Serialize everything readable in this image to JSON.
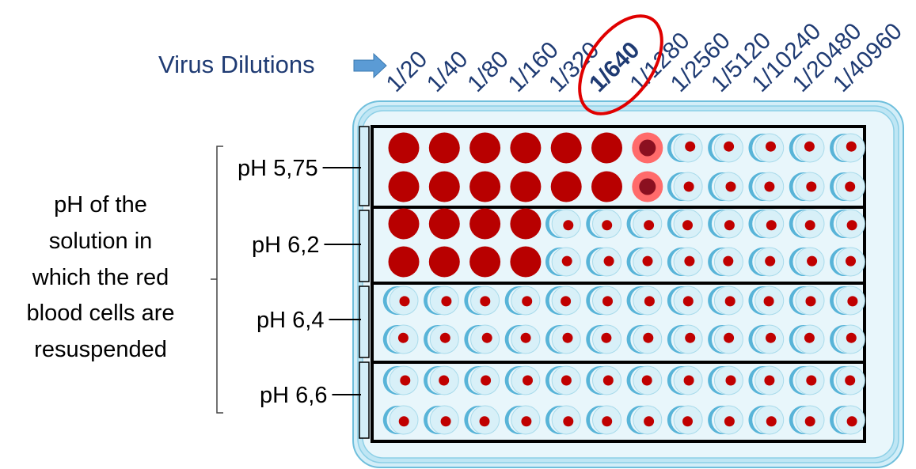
{
  "title": "Virus Dilutions",
  "dilutions": [
    "1/20",
    "1/40",
    "1/80",
    "1/160",
    "1/320",
    "1/640",
    "1/1280",
    "1/2560",
    "1/5120",
    "1/10240",
    "1/20480",
    "1/40960"
  ],
  "highlighted_dilution": "1/640",
  "side_label": [
    "pH of the",
    "solution in",
    "which the red",
    "blood cells are",
    "resuspended"
  ],
  "groups": [
    {
      "label": "pH 5,75",
      "rows": [
        [
          "full",
          "full",
          "full",
          "full",
          "full",
          "full",
          "partial",
          "button",
          "button",
          "button",
          "button",
          "button"
        ],
        [
          "full",
          "full",
          "full",
          "full",
          "full",
          "full",
          "partial",
          "button",
          "button",
          "button",
          "button",
          "button"
        ]
      ]
    },
    {
      "label": "pH 6,2",
      "rows": [
        [
          "full",
          "full",
          "full",
          "full",
          "button",
          "button",
          "button",
          "button",
          "button",
          "button",
          "button",
          "button"
        ],
        [
          "full",
          "full",
          "full",
          "full",
          "button",
          "button",
          "button",
          "button",
          "button",
          "button",
          "button",
          "button"
        ]
      ]
    },
    {
      "label": "pH 6,4",
      "rows": [
        [
          "button",
          "button",
          "button",
          "button",
          "button",
          "button",
          "button",
          "button",
          "button",
          "button",
          "button",
          "button"
        ],
        [
          "button",
          "button",
          "button",
          "button",
          "button",
          "button",
          "button",
          "button",
          "button",
          "button",
          "button",
          "button"
        ]
      ]
    },
    {
      "label": "pH 6,6",
      "rows": [
        [
          "button",
          "button",
          "button",
          "button",
          "button",
          "button",
          "button",
          "button",
          "button",
          "button",
          "button",
          "button"
        ],
        [
          "button",
          "button",
          "button",
          "button",
          "button",
          "button",
          "button",
          "button",
          "button",
          "button",
          "button",
          "button"
        ]
      ]
    }
  ],
  "colors": {
    "full": "#b80000",
    "partial_ring": "#ff6b6b",
    "partial_core": "#8b1020",
    "button_dot": "#c00000",
    "well_light": "#d8f0f8",
    "well_dark": "#58b4d8",
    "plate_bg": "#e8f6fb",
    "plate_rim": "#bfe6f4",
    "title": "#1f3b73",
    "highlight": "#e00000",
    "arrow": "#5b9bd5"
  }
}
